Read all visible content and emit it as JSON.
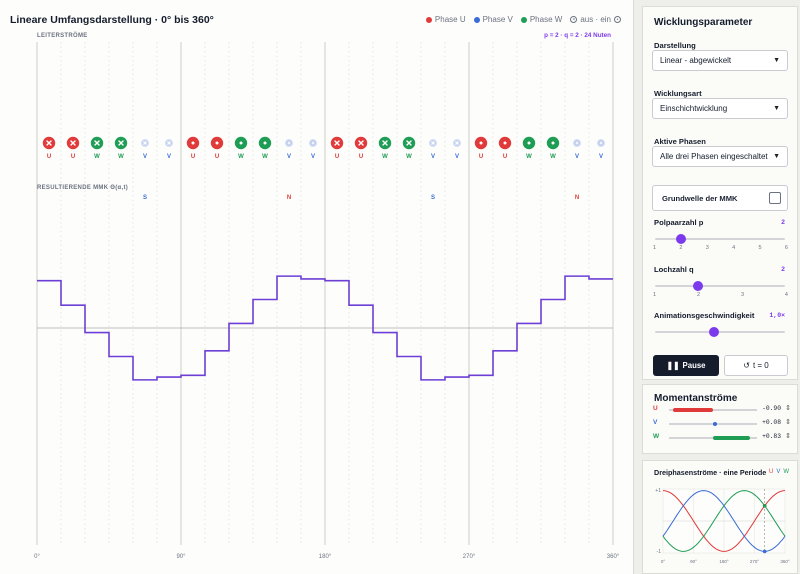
{
  "left": {
    "title": "Lineare Umfangsdarstellung · 0° bis 360°",
    "legend": {
      "phase_u": "Phase U",
      "phase_v": "Phase V",
      "phase_w": "Phase W",
      "out_in": "aus · ein",
      "colors": {
        "u": "#e03a3a",
        "v": "#3a6bd6",
        "w": "#1f9d55"
      }
    },
    "section_currents": "LEITERSTRÖME",
    "params_label": "p = 2 · q = 2 · 24 Nuten",
    "section_mmf": "RESULTIERENDE MMK  Θ(α,t)",
    "slots": [
      {
        "phase": "U",
        "sym": "x",
        "strong": true
      },
      {
        "phase": "U",
        "sym": "x",
        "strong": true
      },
      {
        "phase": "W",
        "sym": "x",
        "strong": true
      },
      {
        "phase": "W",
        "sym": "x",
        "strong": true
      },
      {
        "phase": "V",
        "sym": "x",
        "strong": false
      },
      {
        "phase": "V",
        "sym": "x",
        "strong": false
      },
      {
        "phase": "U",
        "sym": "dot",
        "strong": true
      },
      {
        "phase": "U",
        "sym": "dot",
        "strong": true
      },
      {
        "phase": "W",
        "sym": "dot",
        "strong": true
      },
      {
        "phase": "W",
        "sym": "dot",
        "strong": true
      },
      {
        "phase": "V",
        "sym": "dot",
        "strong": false
      },
      {
        "phase": "V",
        "sym": "dot",
        "strong": false
      },
      {
        "phase": "U",
        "sym": "x",
        "strong": true
      },
      {
        "phase": "U",
        "sym": "x",
        "strong": true
      },
      {
        "phase": "W",
        "sym": "x",
        "strong": true
      },
      {
        "phase": "W",
        "sym": "x",
        "strong": true
      },
      {
        "phase": "V",
        "sym": "x",
        "strong": false
      },
      {
        "phase": "V",
        "sym": "x",
        "strong": false
      },
      {
        "phase": "U",
        "sym": "dot",
        "strong": true
      },
      {
        "phase": "U",
        "sym": "dot",
        "strong": true
      },
      {
        "phase": "W",
        "sym": "dot",
        "strong": true
      },
      {
        "phase": "W",
        "sym": "dot",
        "strong": true
      },
      {
        "phase": "V",
        "sym": "dot",
        "strong": false
      },
      {
        "phase": "V",
        "sym": "dot",
        "strong": false
      }
    ],
    "poles": [
      {
        "label": "S",
        "deg": 67.5,
        "color": "#3a6bd6"
      },
      {
        "label": "N",
        "deg": 157.5,
        "color": "#e03a3a"
      },
      {
        "label": "S",
        "deg": 247.5,
        "color": "#3a6bd6"
      },
      {
        "label": "N",
        "deg": 337.5,
        "color": "#e03a3a"
      }
    ],
    "mmf_steps": [
      0.83,
      0.4,
      -0.08,
      -0.5,
      -0.91,
      -0.86,
      -0.83,
      -0.4,
      0.08,
      0.5,
      0.91,
      0.86,
      0.83,
      0.4,
      -0.08,
      -0.5,
      -0.91,
      -0.86,
      -0.83,
      -0.4,
      0.08,
      0.5,
      0.91,
      0.86
    ],
    "x_ticks": [
      "0°",
      "90°",
      "180°",
      "270°",
      "360°"
    ]
  },
  "panel": {
    "title": "Wicklungsparameter",
    "darstellung": {
      "label": "Darstellung",
      "value": "Linear - abgewickelt"
    },
    "wicklungsart": {
      "label": "Wicklungsart",
      "value": "Einschichtwicklung"
    },
    "phasen": {
      "label": "Aktive Phasen",
      "value": "Alle drei Phasen eingeschaltet"
    },
    "grundwelle": {
      "label": "Grundwelle der MMK"
    },
    "polpaar": {
      "label": "Polpaarzahl p",
      "value": "2",
      "level": 0.2,
      "ticks": [
        "1",
        "2",
        "3",
        "4",
        "5",
        "6"
      ]
    },
    "lochzahl": {
      "label": "Lochzahl q",
      "value": "2",
      "level": 0.333,
      "ticks": [
        "1",
        "2",
        "3",
        "4"
      ]
    },
    "anim": {
      "label": "Animationsgeschwindigkeit",
      "value": "1,0×",
      "level": 0.45
    },
    "pause_label": "Pause",
    "reset_label": "t = 0"
  },
  "moment": {
    "title": "Momentanströme",
    "rows": [
      {
        "phase": "U",
        "value": "-0.90",
        "level": -0.9,
        "color": "#e03a3a"
      },
      {
        "phase": "V",
        "value": "+0.08",
        "level": 0.08,
        "color": "#3a6bd6"
      },
      {
        "phase": "W",
        "value": "+0.83",
        "level": 0.83,
        "color": "#1f9d55"
      }
    ]
  },
  "dreiphasen": {
    "title": "Dreiphasenströme · eine Periode",
    "legend": [
      "U",
      "V",
      "W"
    ],
    "y_ticks": [
      "+1",
      "-1"
    ],
    "x_ticks": [
      "0°",
      "90°",
      "180°",
      "270°",
      "360°"
    ],
    "marker_deg": 300
  }
}
